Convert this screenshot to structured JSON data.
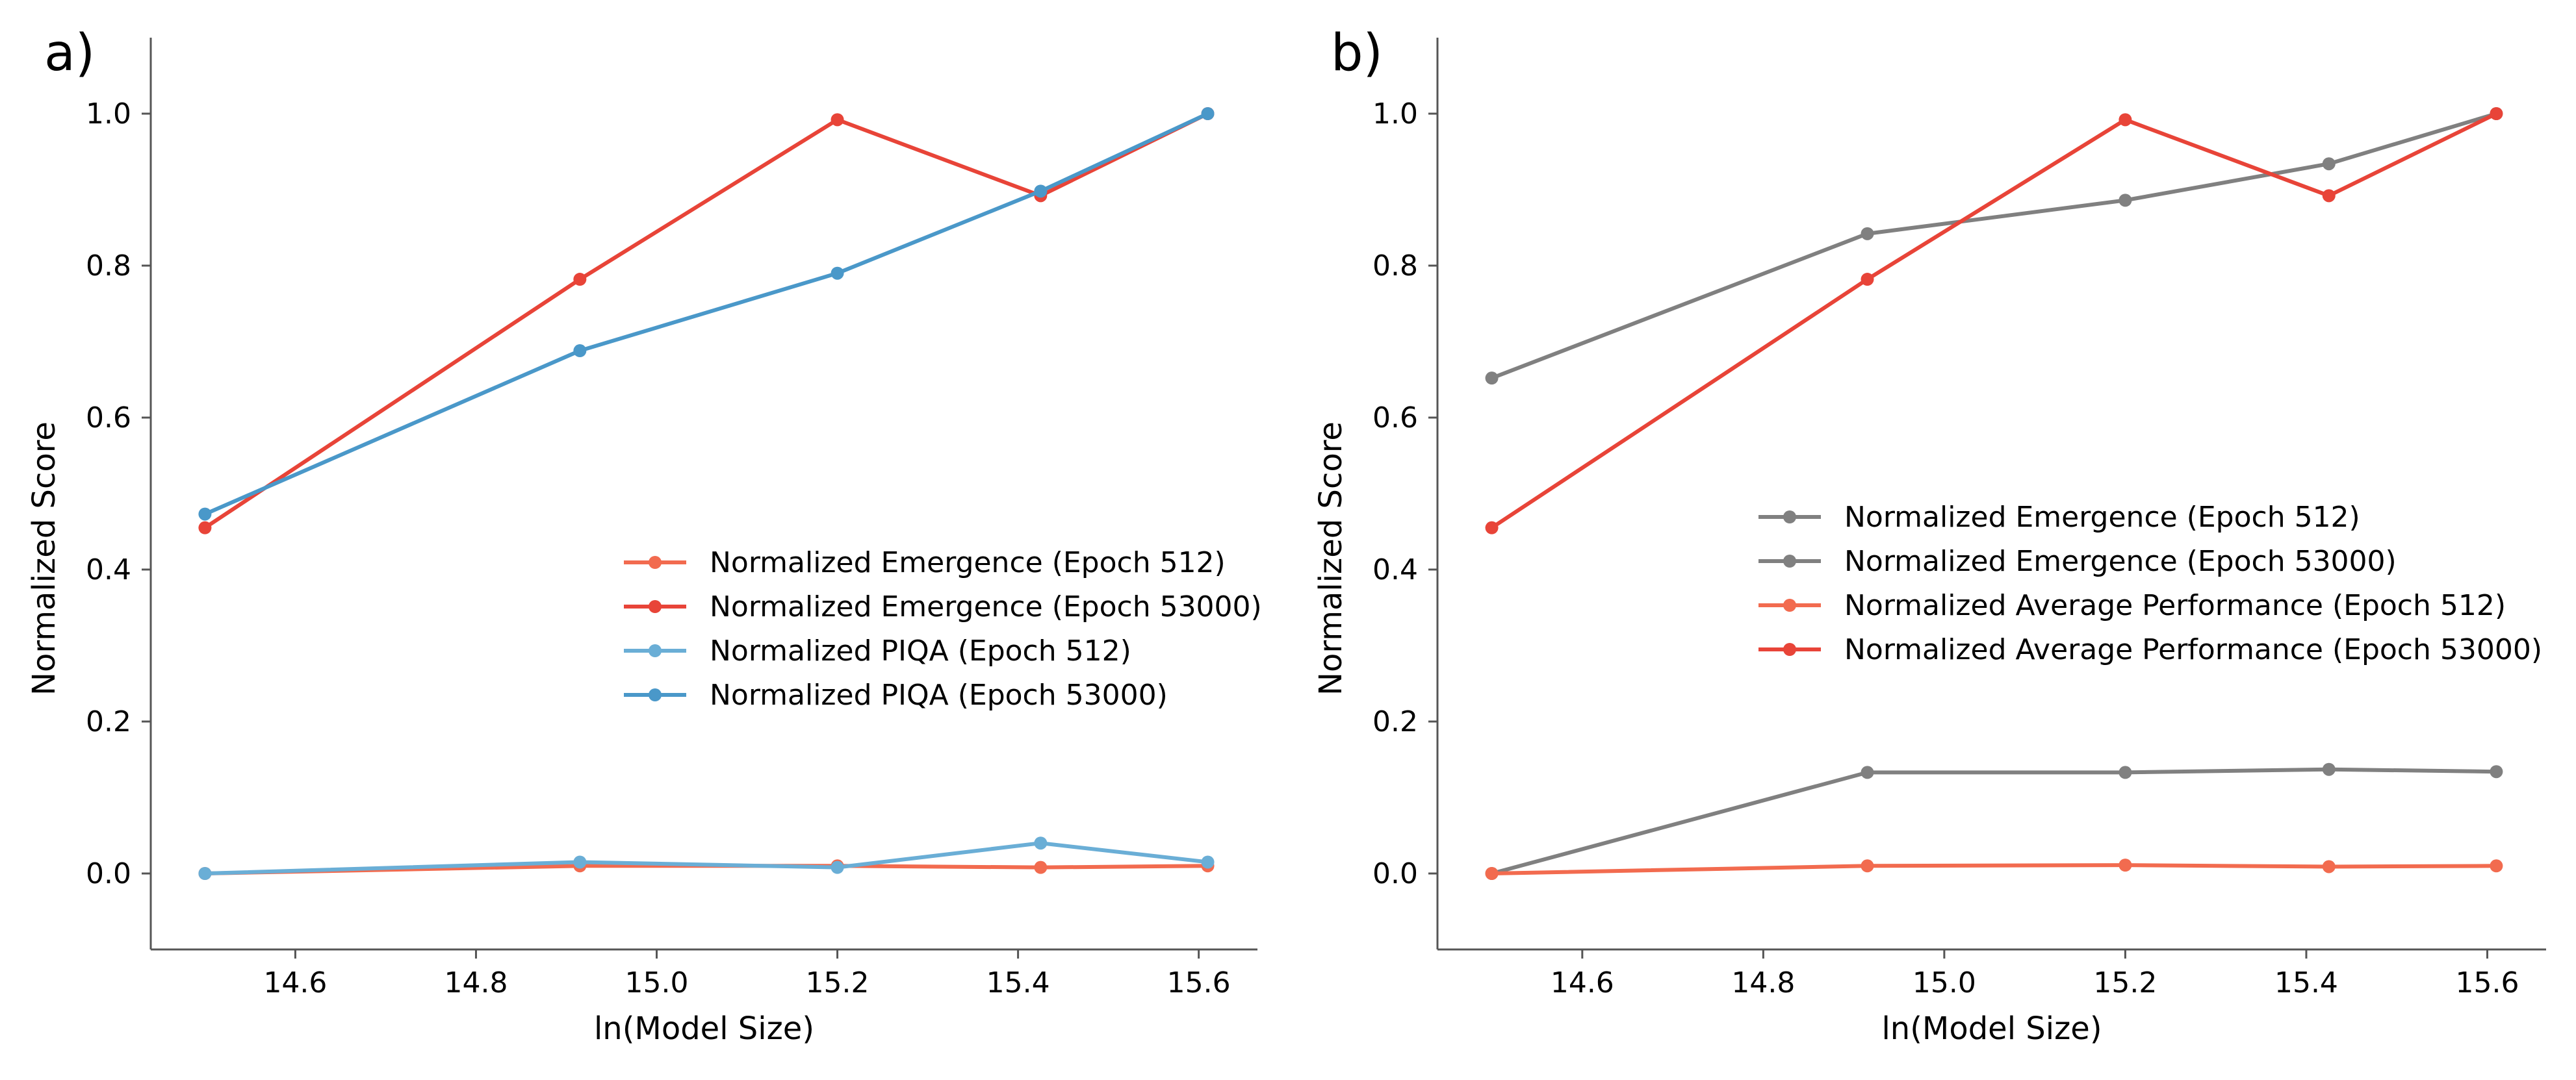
{
  "colors": {
    "red_light": "#f26b4f",
    "red_dark": "#e84438",
    "blue_light": "#6aaed6",
    "blue_dark": "#4a98c9",
    "gray": "#808080",
    "axis": "#555555"
  },
  "chart_data": [
    {
      "type": "line",
      "panel_label": "a)",
      "xlabel": "ln(Model Size)",
      "ylabel": "Normalized Score",
      "xlim": [
        14.44,
        15.665
      ],
      "ylim": [
        -0.1,
        1.1
      ],
      "xticks": [
        "14.6",
        "14.8",
        "15.0",
        "15.2",
        "15.4",
        "15.6"
      ],
      "yticks": [
        "0.0",
        "0.2",
        "0.4",
        "0.6",
        "0.8",
        "1.0"
      ],
      "grid": false,
      "legend_position": "center-right",
      "x": [
        14.5,
        14.915,
        15.2,
        15.425,
        15.61
      ],
      "series": [
        {
          "name": "Normalized Emergence (Epoch 512)",
          "color_key": "red_light",
          "values": [
            0.0,
            0.01,
            0.01,
            0.008,
            0.01
          ]
        },
        {
          "name": "Normalized Emergence (Epoch 53000)",
          "color_key": "red_dark",
          "values": [
            0.455,
            0.782,
            0.992,
            0.892,
            1.0
          ]
        },
        {
          "name": "Normalized PIQA (Epoch 512)",
          "color_key": "blue_light",
          "values": [
            0.0,
            0.015,
            0.008,
            0.04,
            0.015
          ]
        },
        {
          "name": "Normalized PIQA (Epoch 53000)",
          "color_key": "blue_dark",
          "values": [
            0.473,
            0.688,
            0.79,
            0.898,
            1.0
          ]
        }
      ]
    },
    {
      "type": "line",
      "panel_label": "b)",
      "xlabel": "ln(Model Size)",
      "ylabel": "Normalized Score",
      "xlim": [
        14.44,
        15.665
      ],
      "ylim": [
        -0.1,
        1.1
      ],
      "xticks": [
        "14.6",
        "14.8",
        "15.0",
        "15.2",
        "15.4",
        "15.6"
      ],
      "yticks": [
        "0.0",
        "0.2",
        "0.4",
        "0.6",
        "0.8",
        "1.0"
      ],
      "grid": false,
      "legend_position": "center-right",
      "x": [
        14.5,
        14.915,
        15.2,
        15.425,
        15.61
      ],
      "series": [
        {
          "name": "Normalized Emergence (Epoch 512)",
          "color_key": "gray",
          "values": [
            0.0,
            0.133,
            0.133,
            0.137,
            0.134
          ]
        },
        {
          "name": "Normalized Emergence (Epoch 53000)",
          "color_key": "gray",
          "values": [
            0.652,
            0.842,
            0.886,
            0.934,
            1.0
          ]
        },
        {
          "name": "Normalized Average Performance (Epoch 512)",
          "color_key": "red_light",
          "values": [
            0.0,
            0.01,
            0.011,
            0.009,
            0.01
          ]
        },
        {
          "name": "Normalized Average Performance (Epoch 53000)",
          "color_key": "red_dark",
          "values": [
            0.455,
            0.782,
            0.992,
            0.892,
            1.0
          ]
        }
      ]
    }
  ]
}
